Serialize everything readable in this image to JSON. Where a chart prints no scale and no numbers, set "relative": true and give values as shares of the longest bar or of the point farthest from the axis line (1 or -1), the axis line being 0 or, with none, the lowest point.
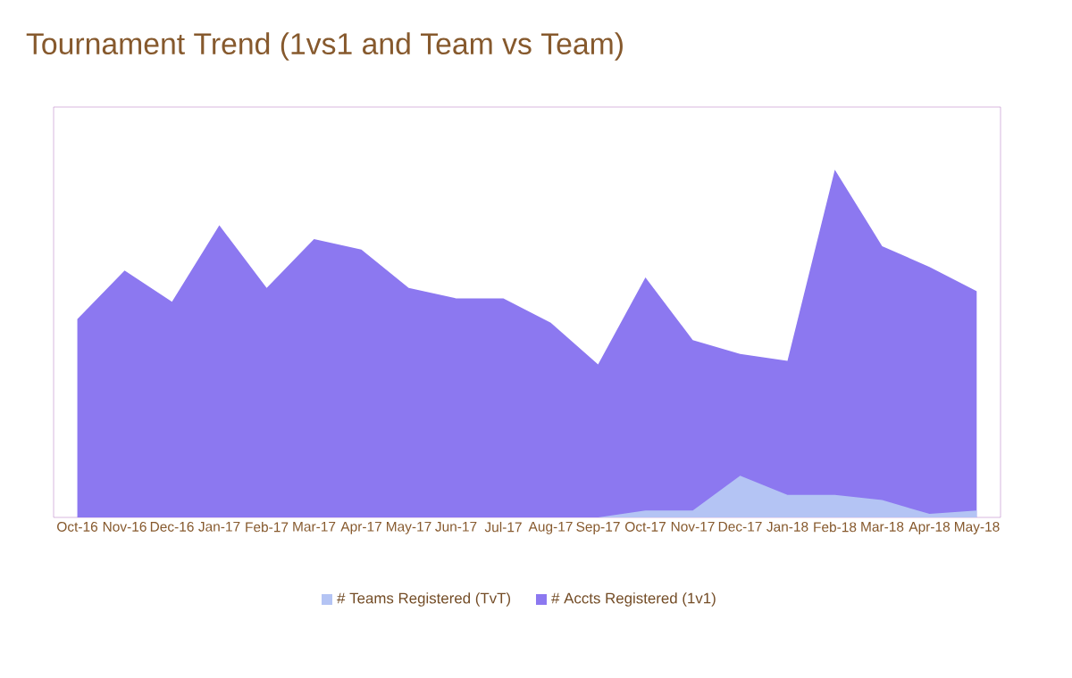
{
  "chart_data": {
    "type": "area",
    "title": "Tournament Trend (1vs1 and Team vs Team)",
    "relative": true,
    "legend": "bottom",
    "categories": [
      "Oct-16",
      "Nov-16",
      "Dec-16",
      "Jan-17",
      "Feb-17",
      "Mar-17",
      "Apr-17",
      "May-17",
      "Jun-17",
      "Jul-17",
      "Aug-17",
      "Sep-17",
      "Oct-17",
      "Nov-17",
      "Dec-17",
      "Jan-18",
      "Feb-18",
      "Mar-18",
      "Apr-18",
      "May-18"
    ],
    "series": [
      {
        "name": "# Teams Registered (TvT)",
        "color": "#b4c4f4",
        "values": [
          0,
          0,
          0,
          0,
          0,
          0,
          0,
          0,
          0,
          0,
          0,
          0,
          0.02,
          0.02,
          0.12,
          0.065,
          0.065,
          0.05,
          0.01,
          0.02
        ]
      },
      {
        "name": "# Accts Registered (1v1)",
        "color": "#8c78f0",
        "values": [
          0.57,
          0.71,
          0.62,
          0.84,
          0.66,
          0.8,
          0.77,
          0.66,
          0.63,
          0.63,
          0.56,
          0.44,
          0.69,
          0.51,
          0.47,
          0.45,
          1,
          0.78,
          0.72,
          0.65
        ]
      }
    ]
  }
}
